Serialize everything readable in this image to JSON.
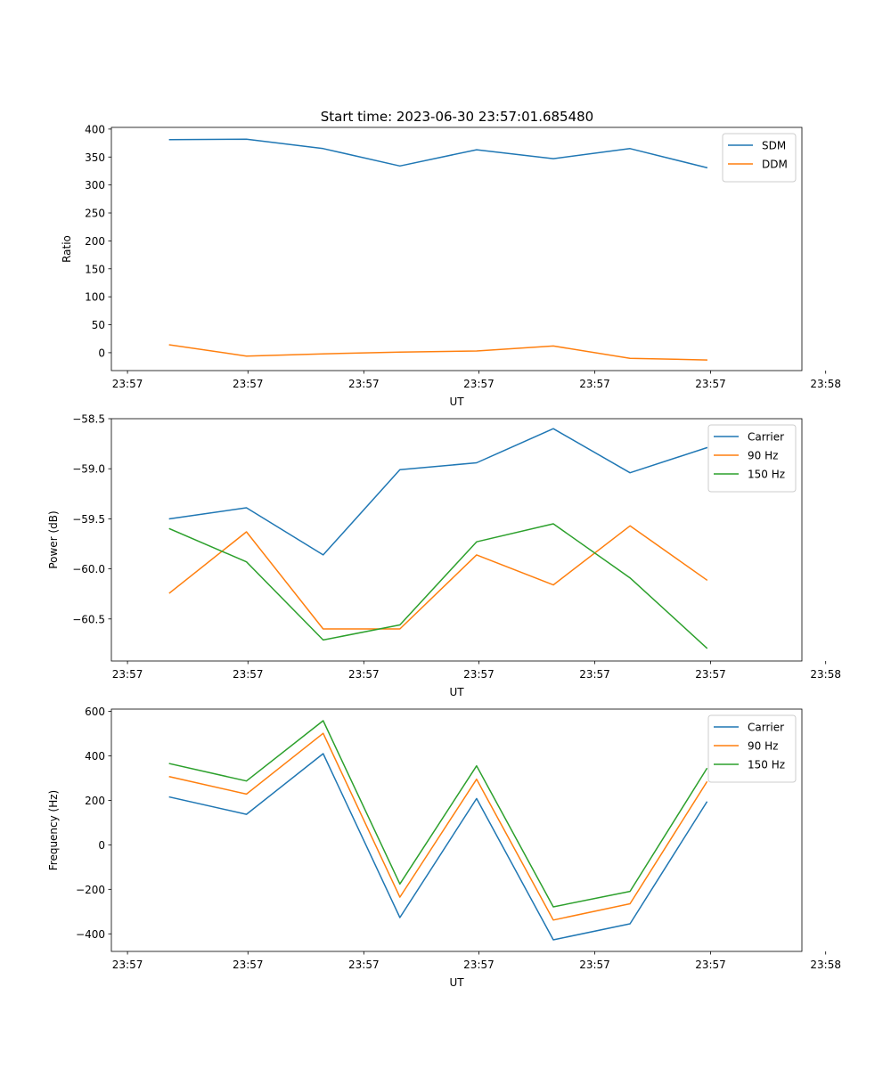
{
  "figure": {
    "title": "Start time: 2023-06-30 23:57:01.685480"
  },
  "chart_data": [
    {
      "type": "line",
      "xlabel": "UT",
      "ylabel": "Ratio",
      "x_tick_labels": [
        "23:57",
        "23:57",
        "23:57",
        "23:57",
        "23:57",
        "23:57",
        "23:58"
      ],
      "x": [
        1,
        2,
        3,
        4,
        5,
        6,
        7,
        8
      ],
      "xlim": [
        0.24,
        9.24
      ],
      "x_ticks": [
        0.45,
        2.02,
        3.53,
        5.03,
        6.54,
        8.05,
        9.55
      ],
      "y_ticks": [
        0,
        50,
        100,
        150,
        200,
        250,
        300,
        350,
        400
      ],
      "ylim": [
        -32,
        403
      ],
      "grid": false,
      "legend_placement": "top-right",
      "series": [
        {
          "name": "SDM",
          "color": "#1f77b4",
          "values": [
            381,
            382,
            365,
            334,
            363,
            347,
            365,
            331
          ]
        },
        {
          "name": "DDM",
          "color": "#ff7f0e",
          "values": [
            14,
            -6,
            -2,
            1,
            3,
            12,
            -10,
            -13
          ]
        }
      ]
    },
    {
      "type": "line",
      "xlabel": "UT",
      "ylabel": "Power (dB)",
      "x_tick_labels": [
        "23:57",
        "23:57",
        "23:57",
        "23:57",
        "23:57",
        "23:57",
        "23:58"
      ],
      "x": [
        1,
        2,
        3,
        4,
        5,
        6,
        7,
        8
      ],
      "xlim": [
        0.24,
        9.24
      ],
      "x_ticks": [
        0.45,
        2.02,
        3.53,
        5.03,
        6.54,
        8.05,
        9.55
      ],
      "y_ticks": [
        -60.5,
        -60.0,
        -59.5,
        -59.0,
        -58.5
      ],
      "y_tick_labels": [
        "−60.5",
        "−60.0",
        "−59.5",
        "−59.0",
        "−58.5"
      ],
      "ylim": [
        -60.92,
        -58.5
      ],
      "grid": false,
      "legend_placement": "top-right",
      "series": [
        {
          "name": "Carrier",
          "color": "#1f77b4",
          "values": [
            -59.5,
            -59.39,
            -59.86,
            -59.01,
            -58.94,
            -58.6,
            -59.04,
            -58.79
          ]
        },
        {
          "name": "90 Hz",
          "color": "#ff7f0e",
          "values": [
            -60.24,
            -59.63,
            -60.6,
            -60.6,
            -59.86,
            -60.16,
            -59.57,
            -60.11
          ]
        },
        {
          "name": "150 Hz",
          "color": "#2ca02c",
          "values": [
            -59.6,
            -59.93,
            -60.71,
            -60.56,
            -59.73,
            -59.55,
            -60.09,
            -60.79
          ]
        }
      ]
    },
    {
      "type": "line",
      "xlabel": "UT",
      "ylabel": "Frequency (Hz)",
      "x_tick_labels": [
        "23:57",
        "23:57",
        "23:57",
        "23:57",
        "23:57",
        "23:57",
        "23:58"
      ],
      "x": [
        1,
        2,
        3,
        4,
        5,
        6,
        7,
        8
      ],
      "xlim": [
        0.24,
        9.24
      ],
      "x_ticks": [
        0.45,
        2.02,
        3.53,
        5.03,
        6.54,
        8.05,
        9.55
      ],
      "y_ticks": [
        -400,
        -200,
        0,
        200,
        400,
        600
      ],
      "y_tick_labels": [
        "−400",
        "−200",
        "0",
        "200",
        "400",
        "600"
      ],
      "ylim": [
        -479,
        610
      ],
      "grid": false,
      "legend_placement": "top-right",
      "series": [
        {
          "name": "Carrier",
          "color": "#1f77b4",
          "values": [
            215,
            137,
            410,
            -327,
            208,
            -427,
            -355,
            192
          ]
        },
        {
          "name": "90 Hz",
          "color": "#ff7f0e",
          "values": [
            306,
            228,
            501,
            -235,
            295,
            -338,
            -265,
            282
          ]
        },
        {
          "name": "150 Hz",
          "color": "#2ca02c",
          "values": [
            365,
            287,
            558,
            -176,
            355,
            -279,
            -209,
            342
          ]
        }
      ]
    }
  ]
}
